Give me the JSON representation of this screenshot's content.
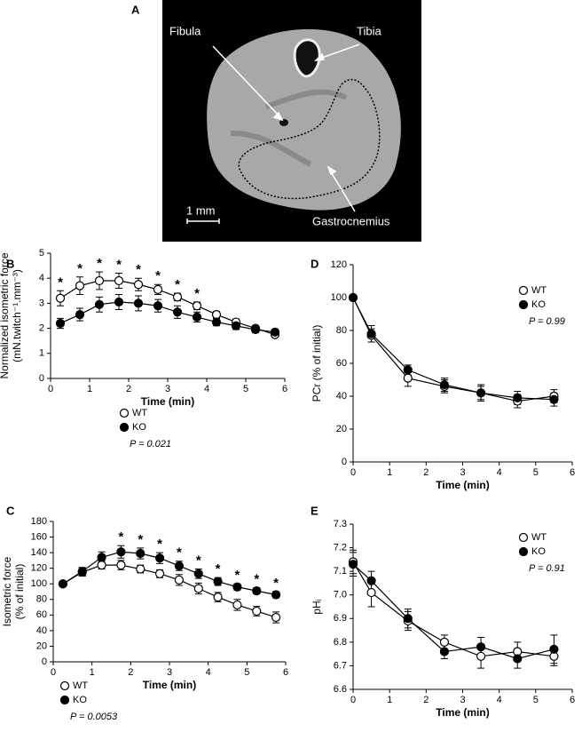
{
  "panel_a": {
    "panel_label": "A",
    "labels": [
      "Fibula",
      "Tibia",
      "Gastrocnemius"
    ],
    "scale_bar": "1 mm"
  },
  "chart_data": [
    {
      "type": "line",
      "panel_label": "B",
      "x_label": "Time (min)",
      "y_label": [
        "Normalized isometric force",
        "(mN.twitch⁻¹.mm⁻³)"
      ],
      "x": [
        0.25,
        0.75,
        1.25,
        1.75,
        2.25,
        2.75,
        3.25,
        3.75,
        4.25,
        4.75,
        5.25,
        5.75
      ],
      "series": [
        {
          "name": "WT",
          "color": "#ffffff",
          "values": [
            3.2,
            3.7,
            3.9,
            3.9,
            3.75,
            3.55,
            3.25,
            2.9,
            2.55,
            2.25,
            2.0,
            1.75
          ],
          "errors": [
            0.3,
            0.35,
            0.35,
            0.3,
            0.25,
            0.2,
            0.15,
            0.15,
            0.12,
            0.12,
            0.1,
            0.1
          ]
        },
        {
          "name": "KO",
          "color": "#000000",
          "values": [
            2.2,
            2.55,
            2.95,
            3.05,
            3.0,
            2.9,
            2.65,
            2.45,
            2.25,
            2.1,
            1.95,
            1.85
          ],
          "errors": [
            0.2,
            0.25,
            0.3,
            0.3,
            0.3,
            0.25,
            0.25,
            0.2,
            0.15,
            0.15,
            0.12,
            0.12
          ]
        }
      ],
      "significance": [
        "*",
        "*",
        "*",
        "*",
        "*",
        "*",
        "*",
        "*",
        null,
        null,
        null,
        null
      ],
      "annotation": "P = 0.021",
      "xlim": [
        0,
        6
      ],
      "xticks": [
        0,
        1,
        2,
        3,
        4,
        5,
        6
      ],
      "ylim": [
        0,
        5
      ],
      "yticks": [
        0,
        1,
        2,
        3,
        4,
        5
      ]
    },
    {
      "type": "line",
      "panel_label": "C",
      "x_label": "Time (min)",
      "y_label": [
        "Isometric force",
        "(% of initial)"
      ],
      "x": [
        0.25,
        0.75,
        1.25,
        1.75,
        2.25,
        2.75,
        3.25,
        3.75,
        4.25,
        4.75,
        5.25,
        5.75
      ],
      "series": [
        {
          "name": "WT",
          "color": "#ffffff",
          "values": [
            100,
            115,
            124,
            124,
            119,
            113,
            105,
            94,
            83,
            73,
            65,
            57
          ],
          "errors": [
            0,
            5,
            5,
            6,
            5,
            5,
            7,
            7,
            6,
            7,
            6,
            7
          ]
        },
        {
          "name": "KO",
          "color": "#000000",
          "values": [
            100,
            116,
            134,
            141,
            139,
            133,
            123,
            113,
            103,
            96,
            91,
            86
          ],
          "errors": [
            0,
            5,
            7,
            8,
            7,
            7,
            6,
            6,
            5,
            4,
            4,
            4
          ]
        }
      ],
      "significance": [
        null,
        null,
        null,
        "*",
        "*",
        "*",
        "*",
        "*",
        "*",
        "*",
        "*",
        "*"
      ],
      "annotation": "P = 0.0053",
      "xlim": [
        0,
        6
      ],
      "xticks": [
        0,
        1,
        2,
        3,
        4,
        5,
        6
      ],
      "ylim": [
        0,
        180
      ],
      "yticks": [
        0,
        20,
        40,
        60,
        80,
        100,
        120,
        140,
        160,
        180
      ]
    },
    {
      "type": "line",
      "panel_label": "D",
      "x_label": "Time (min)",
      "y_label": [
        "PCr (% of initial)"
      ],
      "x": [
        0,
        0.5,
        1.5,
        2.5,
        3.5,
        4.5,
        5.5
      ],
      "series": [
        {
          "name": "WT",
          "color": "#ffffff",
          "values": [
            100,
            77,
            51,
            46,
            42,
            37,
            40
          ],
          "errors": [
            0,
            4,
            5,
            4,
            4,
            4,
            4
          ]
        },
        {
          "name": "KO",
          "color": "#000000",
          "values": [
            100,
            78,
            56,
            47,
            42,
            39,
            38
          ],
          "errors": [
            0,
            5,
            3,
            4,
            5,
            4,
            4
          ]
        }
      ],
      "annotation": "P = 0.99",
      "xlim": [
        0,
        6
      ],
      "xticks": [
        0,
        1,
        2,
        3,
        4,
        5,
        6
      ],
      "ylim": [
        0,
        120
      ],
      "yticks": [
        0,
        20,
        40,
        60,
        80,
        100,
        120
      ]
    },
    {
      "type": "line",
      "panel_label": "E",
      "x_label": "Time (min)",
      "y_label": [
        "pHᵢ"
      ],
      "x": [
        0,
        0.5,
        1.5,
        2.5,
        3.5,
        4.5,
        5.5
      ],
      "series": [
        {
          "name": "WT",
          "color": "#ffffff",
          "values": [
            7.14,
            7.01,
            6.89,
            6.8,
            6.74,
            6.76,
            6.74
          ],
          "errors": [
            0.05,
            0.06,
            0.04,
            0.03,
            0.05,
            0.04,
            0.04
          ]
        },
        {
          "name": "KO",
          "color": "#000000",
          "values": [
            7.13,
            7.06,
            6.9,
            6.76,
            6.78,
            6.73,
            6.77
          ],
          "errors": [
            0.05,
            0.04,
            0.04,
            0.03,
            0.04,
            0.04,
            0.06
          ]
        }
      ],
      "annotation": "P = 0.91",
      "xlim": [
        0,
        6
      ],
      "xticks": [
        0,
        1,
        2,
        3,
        4,
        5,
        6
      ],
      "ylim": [
        6.6,
        7.3
      ],
      "yticks": [
        6.6,
        6.7,
        6.8,
        6.9,
        {
          "value": 7,
          "label": "7.0"
        },
        7.1,
        7.2,
        7.3
      ]
    }
  ]
}
